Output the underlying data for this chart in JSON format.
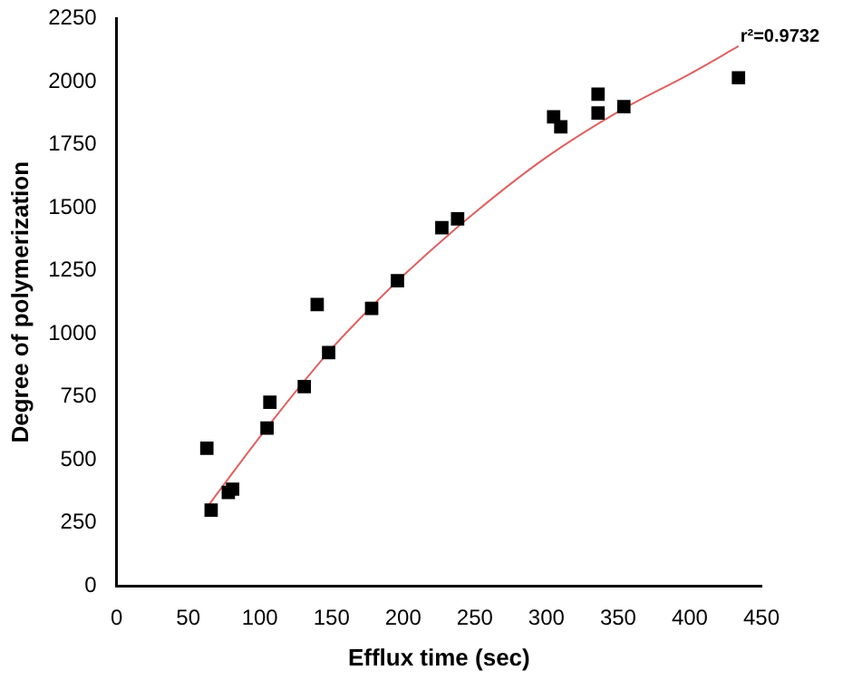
{
  "chart_data": {
    "type": "scatter",
    "xlabel": "Efflux time (sec)",
    "ylabel": "Degree of polymerization",
    "xlim": [
      0,
      450
    ],
    "xticks": [
      0,
      50,
      100,
      150,
      200,
      250,
      300,
      350,
      400,
      450
    ],
    "ylim": [
      0,
      2250
    ],
    "yticks": [
      0,
      250,
      500,
      750,
      1000,
      1250,
      1500,
      1750,
      2000,
      2250
    ],
    "grid": false,
    "legend": false,
    "marker": "square",
    "annotations": [
      {
        "text": "r²=0.9732",
        "x": 434,
        "y": 2140
      }
    ],
    "series": [
      {
        "color": "#000000",
        "x": [
          63,
          66,
          78,
          81,
          105,
          107,
          131,
          140,
          148,
          178,
          196,
          227,
          238,
          305,
          310,
          336,
          336,
          354,
          434
        ],
        "values": [
          545,
          300,
          370,
          383,
          625,
          728,
          790,
          1115,
          925,
          1100,
          1210,
          1420,
          1455,
          1860,
          1820,
          1950,
          1875,
          1900,
          2015
        ]
      },
      {
        "type": "line",
        "color": "#e06060",
        "marker": "none",
        "x": [
          63,
          80,
          100,
          125,
          150,
          175,
          200,
          250,
          300,
          350,
          400,
          434
        ],
        "values": [
          310,
          440,
          590,
          770,
          940,
          1090,
          1230,
          1480,
          1700,
          1880,
          2030,
          2140
        ]
      }
    ]
  }
}
